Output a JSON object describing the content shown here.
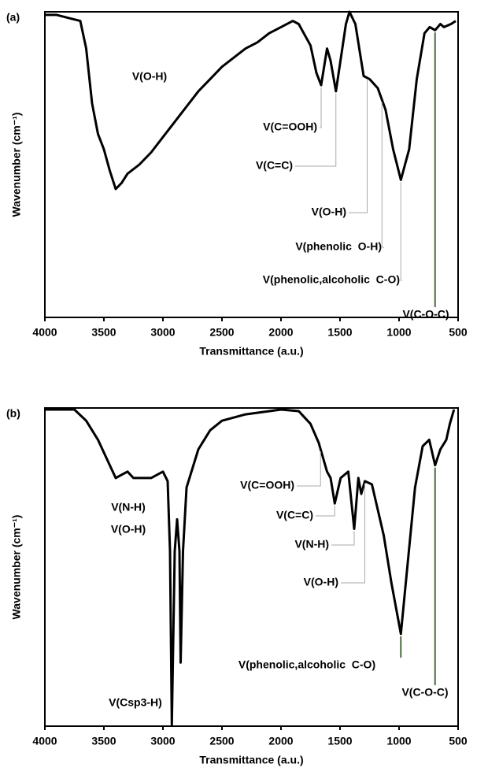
{
  "chart_data": [
    {
      "type": "line",
      "label": "(a)",
      "xlabel": "Transmittance (a.u.)",
      "ylabel": "Wavenumber (cm⁻¹)",
      "xlim": [
        4000,
        500
      ],
      "ylim": [
        0,
        100
      ],
      "xticks": [
        4000,
        3500,
        3000,
        2500,
        2000,
        1500,
        1000,
        500
      ],
      "color": "#000000",
      "x": [
        4000,
        3900,
        3800,
        3700,
        3650,
        3600,
        3550,
        3500,
        3450,
        3400,
        3350,
        3300,
        3200,
        3100,
        3000,
        2900,
        2800,
        2700,
        2600,
        2500,
        2400,
        2300,
        2200,
        2100,
        2000,
        1900,
        1850,
        1750,
        1700,
        1660,
        1610,
        1580,
        1535,
        1450,
        1420,
        1370,
        1300,
        1250,
        1180,
        1115,
        1050,
        985,
        915,
        850,
        785,
        740,
        695,
        650,
        620,
        560,
        520
      ],
      "values": [
        99,
        99,
        98,
        97,
        88,
        70,
        60,
        55,
        48,
        42,
        44,
        47,
        50,
        54,
        59,
        64,
        69,
        74,
        78,
        82,
        85,
        88,
        90,
        93,
        95,
        97,
        96,
        89,
        80,
        76,
        88,
        84,
        74,
        96,
        100,
        96,
        79,
        78,
        75,
        68,
        55,
        45,
        55,
        78,
        93,
        95,
        94,
        96,
        95,
        96,
        97
      ],
      "annotations": [
        {
          "text": "V(O-H)"
        },
        {
          "text": "V(C=OOH)",
          "x": 1660
        },
        {
          "text": "V(C=C)",
          "x": 1535
        },
        {
          "text": "V(O-H)",
          "x": 1270
        },
        {
          "text": "V(phenolic  O-H)",
          "x": 1145
        },
        {
          "text": "V(phenolic,alcoholic  C-O)",
          "x": 985
        },
        {
          "text": "V(C-O-C)",
          "x": 695
        }
      ]
    },
    {
      "type": "line",
      "label": "(b)",
      "xlabel": "Transmittance (a.u.)",
      "ylabel": "Wavenumber (cm⁻¹)",
      "xlim": [
        4000,
        500
      ],
      "ylim": [
        0,
        100
      ],
      "xticks": [
        4000,
        3500,
        3000,
        2500,
        2000,
        1500,
        1000,
        500
      ],
      "color": "#000000",
      "x": [
        4000,
        3750,
        3650,
        3550,
        3450,
        3400,
        3350,
        3300,
        3250,
        3100,
        3000,
        2960,
        2940,
        2925,
        2900,
        2880,
        2860,
        2850,
        2830,
        2800,
        2700,
        2600,
        2500,
        2300,
        2000,
        1850,
        1750,
        1680,
        1610,
        1580,
        1545,
        1495,
        1430,
        1380,
        1345,
        1320,
        1290,
        1230,
        1130,
        1065,
        985,
        930,
        865,
        800,
        745,
        695,
        650,
        600,
        570,
        535
      ],
      "values": [
        99.5,
        99.5,
        96,
        90,
        82,
        78,
        79,
        80,
        78,
        78,
        80,
        77,
        55,
        0.5,
        55,
        65,
        55,
        20,
        55,
        75,
        87,
        93,
        96,
        98,
        99.5,
        99,
        95,
        89,
        80,
        78,
        70,
        78,
        80,
        62,
        78,
        73,
        77,
        76,
        60,
        45,
        29,
        50,
        75,
        88,
        90,
        82,
        87,
        90,
        95,
        99.5
      ],
      "annotations": [
        {
          "text": "V(N-H)"
        },
        {
          "text": "V(O-H)"
        },
        {
          "text": "V(Csp3-H)"
        },
        {
          "text": "V(C=OOH)",
          "x": 1665
        },
        {
          "text": "V(C=C)",
          "x": 1545
        },
        {
          "text": "V(N-H)",
          "x": 1380
        },
        {
          "text": "V(O-H)",
          "x": 1290
        },
        {
          "text": "V(phenolic,alcoholic  C-O)",
          "x": 985
        },
        {
          "text": "V(C-O-C)",
          "x": 695
        }
      ]
    }
  ]
}
